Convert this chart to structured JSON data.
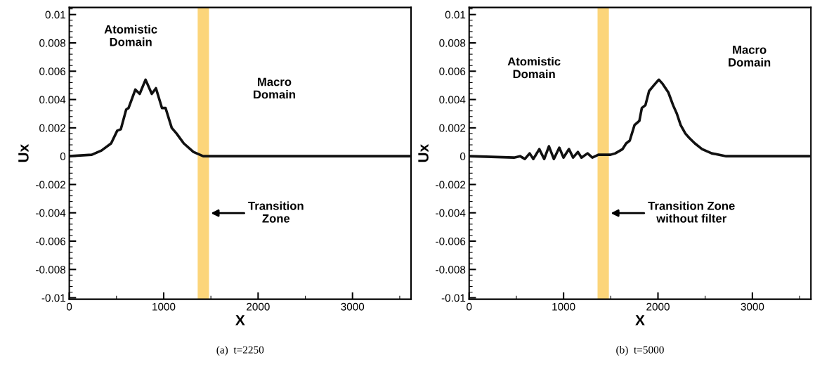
{
  "chart_data": [
    {
      "type": "line",
      "xlabel": "X",
      "ylabel": "Ux",
      "xlim": [
        0,
        3620
      ],
      "ylim": [
        -0.0101,
        0.0105
      ],
      "xticks": [
        0,
        1000,
        2000,
        3000
      ],
      "yticks": [
        -0.01,
        -0.008,
        -0.006,
        -0.004,
        -0.002,
        0,
        0.002,
        0.004,
        0.006,
        0.008,
        0.01
      ],
      "grid": false,
      "legend": false,
      "marker": "none",
      "line_style": "solid",
      "series": [
        {
          "color": "#111111",
          "x": [
            0,
            238,
            341,
            443,
            508,
            546,
            603,
            628,
            700,
            746,
            808,
            874,
            918,
            982,
            1020,
            1085,
            1136,
            1213,
            1315,
            1418,
            1600,
            2000,
            2500,
            3000,
            3620
          ],
          "values": [
            0,
            0.0001,
            0.0004,
            0.0009,
            0.0018,
            0.0019,
            0.0033,
            0.0034,
            0.0047,
            0.0044,
            0.0054,
            0.0044,
            0.0048,
            0.0034,
            0.0034,
            0.002,
            0.0016,
            0.0009,
            0.0003,
            0,
            0,
            0,
            0,
            0,
            0
          ]
        }
      ],
      "bands": [
        {
          "axis": "x",
          "from": 1360,
          "to": 1480,
          "color": "#fcd57a"
        }
      ],
      "annotations": [
        "Atomistic\nDomain",
        "Macro\nDomain",
        "Transition\nZone",
        "(a)  t=2250"
      ]
    },
    {
      "type": "line",
      "xlabel": "X",
      "ylabel": "Ux",
      "xlim": [
        0,
        3620
      ],
      "ylim": [
        -0.0101,
        0.0105
      ],
      "xticks": [
        0,
        1000,
        2000,
        3000
      ],
      "yticks": [
        -0.01,
        -0.008,
        -0.006,
        -0.004,
        -0.002,
        0,
        0.002,
        0.004,
        0.006,
        0.008,
        0.01
      ],
      "grid": false,
      "legend": false,
      "marker": "none",
      "line_style": "solid",
      "series": [
        {
          "color": "#111111",
          "x": [
            0,
            475,
            539,
            590,
            641,
            680,
            743,
            795,
            845,
            897,
            955,
            999,
            1057,
            1101,
            1152,
            1190,
            1254,
            1305,
            1369,
            1497,
            1548,
            1625,
            1663,
            1701,
            1752,
            1803,
            1829,
            1867,
            1906,
            1956,
            1995,
            2010,
            2050,
            2110,
            2160,
            2200,
            2240,
            2290,
            2330,
            2391,
            2467,
            2569,
            2722,
            3000,
            3620
          ],
          "values": [
            0,
            -0.0001,
            0,
            -0.0002,
            0.0002,
            -0.0002,
            0.0005,
            -0.0002,
            0.0007,
            -0.0002,
            0.0006,
            -0.0001,
            0.0005,
            -0.0001,
            0.0003,
            -0.0001,
            0.0002,
            -0.0001,
            0.0001,
            0.0001,
            0.0002,
            0.0005,
            0.0009,
            0.0011,
            0.0022,
            0.0025,
            0.0034,
            0.0036,
            0.0046,
            0.005,
            0.0053,
            0.0054,
            0.0051,
            0.0045,
            0.0036,
            0.003,
            0.0022,
            0.0016,
            0.0013,
            0.0009,
            0.0005,
            0.0002,
            0,
            0,
            0
          ]
        }
      ],
      "bands": [
        {
          "axis": "x",
          "from": 1360,
          "to": 1480,
          "color": "#fcd57a"
        }
      ],
      "annotations": [
        "Atomistic\nDomain",
        "Macro\nDomain",
        "Transition Zone\nwithout filter",
        "(b)  t=5000"
      ]
    }
  ]
}
